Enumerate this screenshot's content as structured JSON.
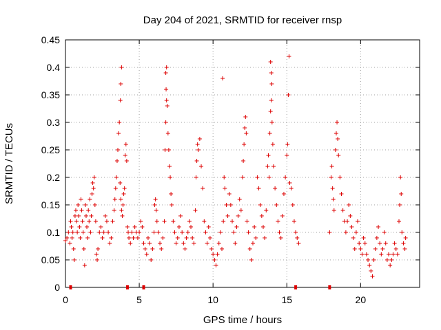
{
  "chart_data": {
    "type": "scatter",
    "title": "Day 204 of 2021, SRMTID for receiver rnsp",
    "xlabel": "GPS time / hours",
    "ylabel": "SRMTID / TECUs",
    "xlim": [
      0,
      24
    ],
    "ylim": [
      0,
      0.45
    ],
    "xticks": [
      0,
      5,
      10,
      15,
      20
    ],
    "xtick_labels": [
      "0",
      "5",
      "10",
      "15",
      "20"
    ],
    "yticks": [
      0,
      0.05,
      0.1,
      0.15,
      0.2,
      0.25,
      0.3,
      0.35,
      0.4,
      0.45
    ],
    "ytick_labels": [
      "0",
      "0.05",
      "0.1",
      "0.15",
      "0.2",
      "0.25",
      "0.3",
      "0.35",
      "0.4",
      "0.45"
    ],
    "grid": true,
    "marker": "+",
    "color": "#dd0000",
    "series": [
      {
        "name": "SRMTID",
        "points": [
          [
            0.0,
            0.085
          ],
          [
            0.1,
            0.09
          ],
          [
            0.2,
            0.1
          ],
          [
            0.3,
            0.08
          ],
          [
            0.35,
            0.12
          ],
          [
            0.4,
            0.11
          ],
          [
            0.45,
            0.09
          ],
          [
            0.5,
            0.1
          ],
          [
            0.55,
            0.07
          ],
          [
            0.6,
            0.05
          ],
          [
            0.65,
            0.13
          ],
          [
            0.7,
            0.14
          ],
          [
            0.75,
            0.12
          ],
          [
            0.8,
            0.1
          ],
          [
            0.85,
            0.15
          ],
          [
            0.9,
            0.13
          ],
          [
            0.95,
            0.11
          ],
          [
            1.0,
            0.09
          ],
          [
            1.05,
            0.16
          ],
          [
            1.1,
            0.14
          ],
          [
            1.15,
            0.12
          ],
          [
            1.2,
            0.1
          ],
          [
            1.25,
            0.07
          ],
          [
            1.3,
            0.04
          ],
          [
            1.35,
            0.15
          ],
          [
            1.4,
            0.13
          ],
          [
            1.45,
            0.11
          ],
          [
            1.5,
            0.09
          ],
          [
            1.55,
            0.14
          ],
          [
            1.6,
            0.12
          ],
          [
            1.65,
            0.16
          ],
          [
            1.7,
            0.1
          ],
          [
            1.75,
            0.13
          ],
          [
            1.8,
            0.17
          ],
          [
            1.85,
            0.19
          ],
          [
            1.9,
            0.18
          ],
          [
            1.95,
            0.2
          ],
          [
            2.0,
            0.15
          ],
          [
            2.05,
            0.12
          ],
          [
            2.1,
            0.06
          ],
          [
            2.15,
            0.05
          ],
          [
            2.2,
            0.07
          ],
          [
            2.3,
            0.1
          ],
          [
            2.4,
            0.11
          ],
          [
            2.5,
            0.09
          ],
          [
            2.6,
            0.1
          ],
          [
            2.7,
            0.13
          ],
          [
            2.8,
            0.12
          ],
          [
            2.9,
            0.1
          ],
          [
            3.0,
            0.08
          ],
          [
            3.1,
            0.09
          ],
          [
            3.2,
            0.12
          ],
          [
            3.3,
            0.14
          ],
          [
            3.35,
            0.16
          ],
          [
            3.4,
            0.18
          ],
          [
            3.45,
            0.2
          ],
          [
            3.5,
            0.23
          ],
          [
            3.55,
            0.25
          ],
          [
            3.6,
            0.28
          ],
          [
            3.65,
            0.3
          ],
          [
            3.7,
            0.19
          ],
          [
            3.75,
            0.16
          ],
          [
            3.8,
            0.14
          ],
          [
            3.85,
            0.13
          ],
          [
            3.9,
            0.15
          ],
          [
            3.95,
            0.17
          ],
          [
            4.0,
            0.18
          ],
          [
            4.05,
            0.24
          ],
          [
            4.1,
            0.26
          ],
          [
            4.15,
            0.23
          ],
          [
            3.8,
            0.4
          ],
          [
            3.75,
            0.37
          ],
          [
            3.72,
            0.34
          ],
          [
            4.2,
            0.11
          ],
          [
            4.25,
            0.1
          ],
          [
            4.3,
            0.09
          ],
          [
            4.4,
            0.08
          ],
          [
            4.5,
            0.1
          ],
          [
            4.6,
            0.09
          ],
          [
            4.7,
            0.11
          ],
          [
            4.8,
            0.1
          ],
          [
            4.9,
            0.09
          ],
          [
            5.0,
            0.1
          ],
          [
            5.1,
            0.12
          ],
          [
            5.2,
            0.11
          ],
          [
            5.3,
            0.08
          ],
          [
            5.4,
            0.07
          ],
          [
            5.5,
            0.06
          ],
          [
            5.6,
            0.09
          ],
          [
            5.7,
            0.08
          ],
          [
            5.8,
            0.05
          ],
          [
            5.9,
            0.07
          ],
          [
            6.0,
            0.1
          ],
          [
            6.05,
            0.15
          ],
          [
            6.1,
            0.16
          ],
          [
            6.15,
            0.14
          ],
          [
            6.2,
            0.12
          ],
          [
            6.3,
            0.1
          ],
          [
            6.4,
            0.08
          ],
          [
            6.5,
            0.07
          ],
          [
            6.6,
            0.09
          ],
          [
            6.7,
            0.12
          ],
          [
            6.75,
            0.25
          ],
          [
            6.8,
            0.3
          ],
          [
            6.85,
            0.34
          ],
          [
            6.9,
            0.33
          ],
          [
            6.95,
            0.28
          ],
          [
            7.0,
            0.25
          ],
          [
            7.05,
            0.22
          ],
          [
            7.1,
            0.2
          ],
          [
            6.8,
            0.39
          ],
          [
            6.82,
            0.36
          ],
          [
            6.85,
            0.4
          ],
          [
            7.15,
            0.17
          ],
          [
            7.2,
            0.15
          ],
          [
            7.3,
            0.12
          ],
          [
            7.4,
            0.1
          ],
          [
            7.5,
            0.08
          ],
          [
            7.6,
            0.09
          ],
          [
            7.7,
            0.11
          ],
          [
            7.8,
            0.13
          ],
          [
            7.9,
            0.1
          ],
          [
            8.0,
            0.08
          ],
          [
            8.1,
            0.07
          ],
          [
            8.2,
            0.09
          ],
          [
            8.3,
            0.1
          ],
          [
            8.4,
            0.12
          ],
          [
            8.5,
            0.11
          ],
          [
            8.6,
            0.09
          ],
          [
            8.7,
            0.08
          ],
          [
            8.8,
            0.14
          ],
          [
            8.85,
            0.2
          ],
          [
            8.9,
            0.23
          ],
          [
            8.95,
            0.26
          ],
          [
            9.0,
            0.25
          ],
          [
            9.1,
            0.27
          ],
          [
            9.2,
            0.22
          ],
          [
            9.3,
            0.18
          ],
          [
            9.4,
            0.12
          ],
          [
            9.5,
            0.1
          ],
          [
            9.6,
            0.08
          ],
          [
            9.7,
            0.11
          ],
          [
            9.8,
            0.09
          ],
          [
            9.9,
            0.07
          ],
          [
            10.0,
            0.06
          ],
          [
            10.1,
            0.05
          ],
          [
            10.2,
            0.04
          ],
          [
            10.3,
            0.06
          ],
          [
            10.4,
            0.08
          ],
          [
            10.5,
            0.1
          ],
          [
            10.6,
            0.07
          ],
          [
            10.7,
            0.12
          ],
          [
            10.75,
            0.2
          ],
          [
            10.8,
            0.18
          ],
          [
            10.9,
            0.15
          ],
          [
            10.65,
            0.38
          ],
          [
            11.0,
            0.13
          ],
          [
            11.1,
            0.17
          ],
          [
            11.2,
            0.15
          ],
          [
            11.3,
            0.12
          ],
          [
            11.4,
            0.1
          ],
          [
            11.5,
            0.08
          ],
          [
            11.6,
            0.11
          ],
          [
            11.7,
            0.13
          ],
          [
            11.8,
            0.16
          ],
          [
            11.9,
            0.14
          ],
          [
            12.0,
            0.2
          ],
          [
            12.05,
            0.23
          ],
          [
            12.1,
            0.26
          ],
          [
            12.15,
            0.29
          ],
          [
            12.2,
            0.31
          ],
          [
            12.25,
            0.28
          ],
          [
            12.3,
            0.12
          ],
          [
            12.4,
            0.1
          ],
          [
            12.5,
            0.07
          ],
          [
            12.6,
            0.05
          ],
          [
            12.7,
            0.08
          ],
          [
            12.8,
            0.11
          ],
          [
            12.9,
            0.09
          ],
          [
            13.0,
            0.2
          ],
          [
            13.1,
            0.18
          ],
          [
            13.2,
            0.15
          ],
          [
            13.3,
            0.13
          ],
          [
            13.4,
            0.11
          ],
          [
            13.5,
            0.09
          ],
          [
            13.6,
            0.14
          ],
          [
            13.7,
            0.22
          ],
          [
            13.75,
            0.24
          ],
          [
            13.8,
            0.2
          ],
          [
            13.85,
            0.28
          ],
          [
            13.9,
            0.32
          ],
          [
            13.95,
            0.34
          ],
          [
            14.0,
            0.3
          ],
          [
            13.9,
            0.41
          ],
          [
            13.95,
            0.39
          ],
          [
            13.98,
            0.37
          ],
          [
            14.05,
            0.26
          ],
          [
            14.1,
            0.22
          ],
          [
            14.2,
            0.18
          ],
          [
            14.3,
            0.15
          ],
          [
            14.4,
            0.12
          ],
          [
            14.5,
            0.1
          ],
          [
            14.6,
            0.09
          ],
          [
            14.7,
            0.13
          ],
          [
            14.8,
            0.17
          ],
          [
            14.9,
            0.2
          ],
          [
            15.0,
            0.24
          ],
          [
            15.05,
            0.26
          ],
          [
            15.1,
            0.35
          ],
          [
            15.15,
            0.42
          ],
          [
            15.2,
            0.19
          ],
          [
            15.3,
            0.18
          ],
          [
            15.4,
            0.15
          ],
          [
            15.5,
            0.12
          ],
          [
            15.6,
            0.1
          ],
          [
            15.7,
            0.09
          ],
          [
            15.8,
            0.08
          ],
          [
            17.9,
            0.1
          ],
          [
            18.0,
            0.2
          ],
          [
            18.05,
            0.22
          ],
          [
            18.1,
            0.18
          ],
          [
            18.15,
            0.16
          ],
          [
            18.2,
            0.14
          ],
          [
            18.3,
            0.25
          ],
          [
            18.35,
            0.28
          ],
          [
            18.4,
            0.3
          ],
          [
            18.45,
            0.27
          ],
          [
            18.5,
            0.24
          ],
          [
            18.6,
            0.2
          ],
          [
            18.7,
            0.17
          ],
          [
            18.8,
            0.14
          ],
          [
            18.9,
            0.12
          ],
          [
            19.0,
            0.1
          ],
          [
            19.1,
            0.12
          ],
          [
            19.2,
            0.15
          ],
          [
            19.3,
            0.13
          ],
          [
            19.4,
            0.11
          ],
          [
            19.5,
            0.09
          ],
          [
            19.6,
            0.07
          ],
          [
            19.7,
            0.1
          ],
          [
            19.8,
            0.12
          ],
          [
            19.9,
            0.08
          ],
          [
            20.0,
            0.07
          ],
          [
            20.1,
            0.06
          ],
          [
            20.2,
            0.09
          ],
          [
            20.3,
            0.08
          ],
          [
            20.4,
            0.06
          ],
          [
            20.5,
            0.05
          ],
          [
            20.6,
            0.04
          ],
          [
            20.7,
            0.03
          ],
          [
            20.8,
            0.02
          ],
          [
            20.9,
            0.05
          ],
          [
            21.0,
            0.07
          ],
          [
            21.1,
            0.09
          ],
          [
            21.2,
            0.11
          ],
          [
            21.3,
            0.08
          ],
          [
            21.4,
            0.06
          ],
          [
            21.5,
            0.07
          ],
          [
            21.6,
            0.1
          ],
          [
            21.7,
            0.08
          ],
          [
            21.8,
            0.05
          ],
          [
            21.9,
            0.06
          ],
          [
            22.0,
            0.04
          ],
          [
            22.1,
            0.05
          ],
          [
            22.2,
            0.06
          ],
          [
            22.3,
            0.08
          ],
          [
            22.4,
            0.07
          ],
          [
            22.5,
            0.06
          ],
          [
            22.6,
            0.12
          ],
          [
            22.65,
            0.15
          ],
          [
            22.7,
            0.2
          ],
          [
            22.75,
            0.17
          ],
          [
            22.8,
            0.1
          ],
          [
            22.9,
            0.08
          ],
          [
            23.0,
            0.07
          ],
          [
            23.05,
            0.09
          ]
        ]
      }
    ],
    "zero_markers_x": [
      0.35,
      4.2,
      5.3,
      15.6,
      17.9
    ]
  }
}
